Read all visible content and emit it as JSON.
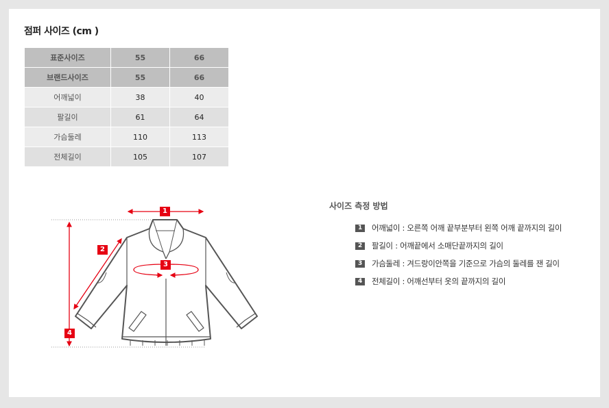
{
  "title": "점퍼 사이즈 (cm )",
  "size_table": {
    "header_rows": [
      [
        "표준사이즈",
        "55",
        "66"
      ],
      [
        "브랜드사이즈",
        "55",
        "66"
      ]
    ],
    "rows": [
      [
        "어깨넓이",
        "38",
        "40"
      ],
      [
        "팔길이",
        "61",
        "64"
      ],
      [
        "가슴둘레",
        "110",
        "113"
      ],
      [
        "전체길이",
        "105",
        "107"
      ]
    ]
  },
  "diagram": {
    "markers": [
      "1",
      "2",
      "3",
      "4"
    ],
    "accent_color": "#e60012"
  },
  "measurement": {
    "title": "사이즈 측정 방법",
    "items": [
      {
        "num": "1",
        "text": "어깨넓이 : 오른쪽 어깨 끝부분부터 왼쪽 어깨 끝까지의 길이"
      },
      {
        "num": "2",
        "text": "팔길이 : 어깨끝에서 소매단끝까지의 길이"
      },
      {
        "num": "3",
        "text": "가슴둘레 : 겨드랑이안쪽을 기준으로 가슴의 둘레를 잰 길이"
      },
      {
        "num": "4",
        "text": "전체길이 : 어깨선부터 옷의 끝까지의 길이"
      }
    ]
  }
}
